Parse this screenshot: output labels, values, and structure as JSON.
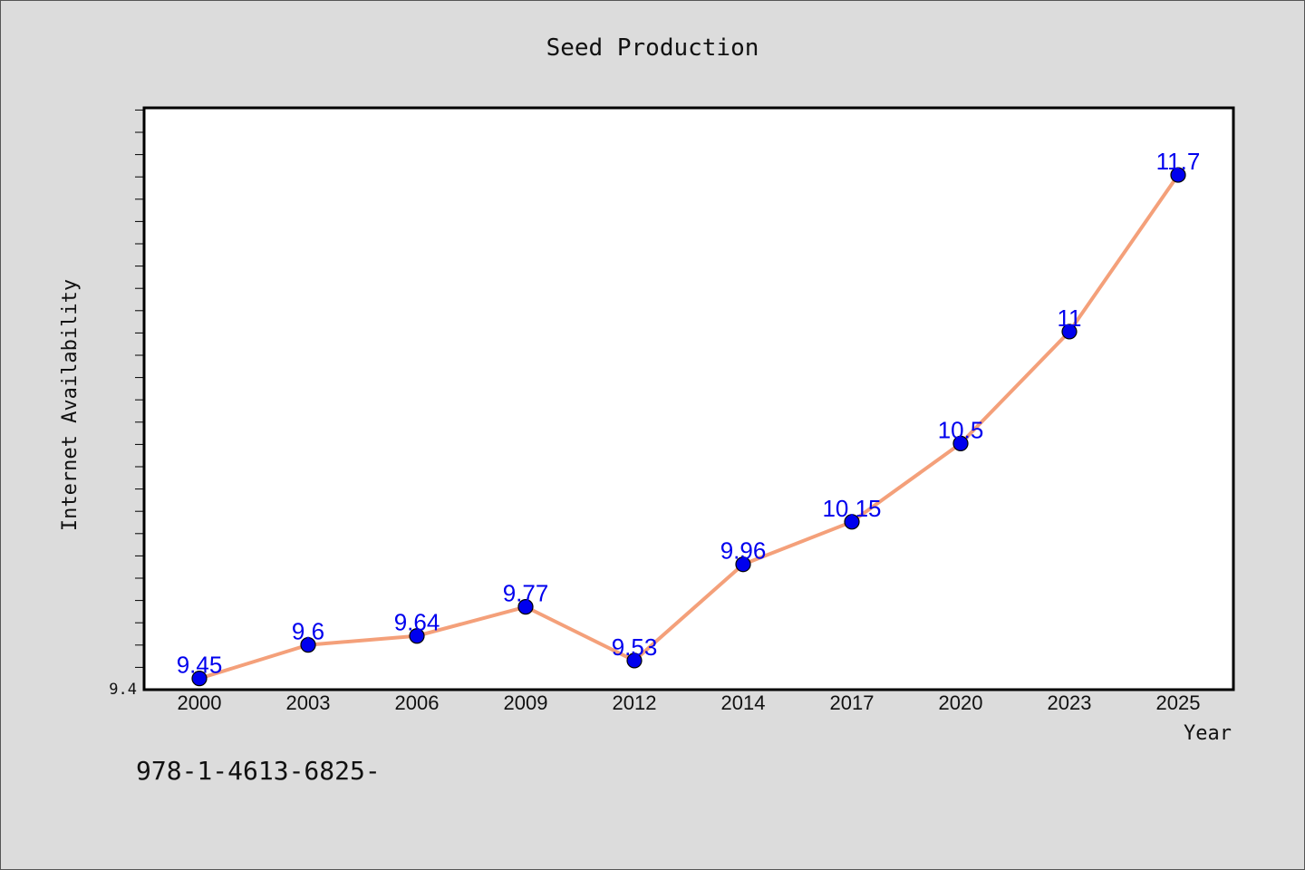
{
  "chart_data": {
    "type": "line",
    "title": "Seed Production",
    "xlabel": "Year",
    "ylabel": "Internet Availability",
    "categories": [
      "2000",
      "2003",
      "2006",
      "2009",
      "2012",
      "2014",
      "2017",
      "2020",
      "2023",
      "2025"
    ],
    "series": [
      {
        "values": [
          9.45,
          9.6,
          9.64,
          9.77,
          9.53,
          9.96,
          10.15,
          10.5,
          11,
          11.7
        ],
        "data_labels": [
          "9.45",
          "9.6",
          "9.64",
          "9.77",
          "9.53",
          "9.96",
          "10.15",
          "10.5",
          "11",
          "11.7"
        ]
      }
    ],
    "ylim": [
      9.4,
      12.0
    ],
    "ytick_labels": [
      "9.4"
    ],
    "grid": false,
    "colors": {
      "line": "#f4a07a",
      "marker": "#0000ee",
      "label": "#0000ee",
      "plot_bg": "#ffffff",
      "page_bg": "#dcdcdc"
    }
  },
  "footer": {
    "text": "978-1-4613-6825-"
  }
}
